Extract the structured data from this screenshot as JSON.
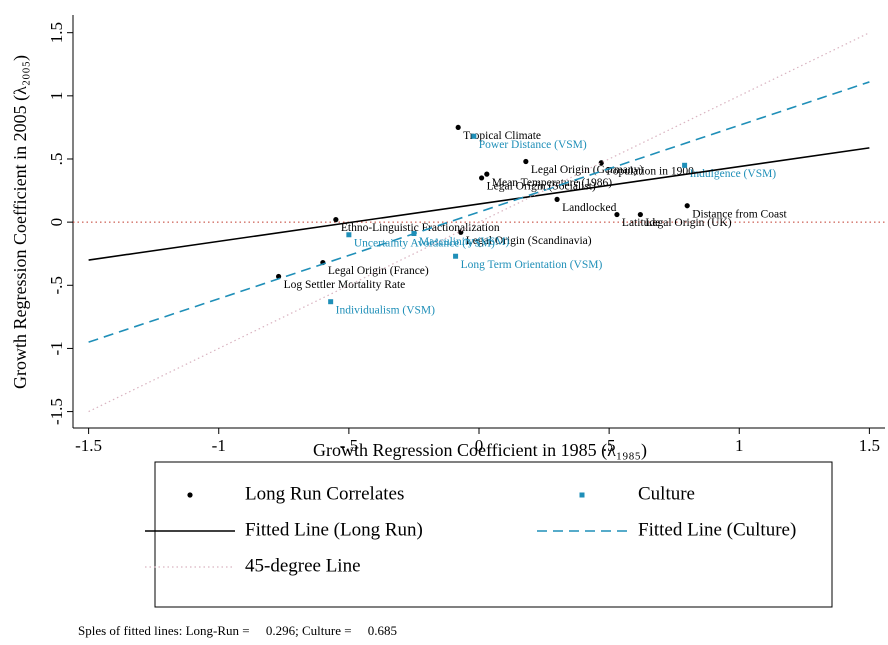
{
  "chart_data": {
    "type": "scatter",
    "xlabel": "Growth Regression Coefficient in 1985 (λ₁₉₈₅)",
    "ylabel": "Growth Regression Coefficient in 2005 (λ₂₀₀₅)",
    "xlim": [
      -1.56,
      1.56
    ],
    "ylim": [
      -1.63,
      1.64
    ],
    "xticks": [
      -1.5,
      -1,
      {
        "value": -0.5,
        "label": "-.5"
      },
      0,
      {
        "value": 0.5,
        "label": ".5"
      },
      1,
      1.5
    ],
    "yticks": [
      -1.5,
      -1,
      {
        "value": -0.5,
        "label": "-.5"
      },
      0,
      {
        "value": 0.5,
        "label": ".5"
      },
      1,
      1.5
    ],
    "hline": {
      "value": 0,
      "color": "#c0392b"
    },
    "series": [
      {
        "name": "Long Run Correlates",
        "style": "points",
        "marker": "dot",
        "color": "#000000",
        "x": [
          -0.08,
          0.18,
          0.47,
          0.03,
          0.01,
          0.3,
          0.53,
          0.62,
          0.8,
          -0.55,
          -0.6,
          -0.77,
          -0.07
        ],
        "values": [
          0.75,
          0.48,
          0.47,
          0.38,
          0.35,
          0.18,
          0.06,
          0.06,
          0.13,
          0.02,
          -0.32,
          -0.43,
          -0.08
        ],
        "labels": [
          "Tropical Climate",
          "Legal Origin (Germany)",
          "Population in 1900",
          "Mean Temperature (1986)",
          "Legal Origin (Socialist)",
          "Landlocked",
          "Latitude",
          "Legal Origin (UK)",
          "Distance from Coast",
          "Ethno-Linguistic Fractionalization",
          "Legal Origin (France)",
          "Log Settler Mortality Rate",
          "Legal Origin (Scandinavia)"
        ]
      },
      {
        "name": "Culture",
        "style": "points",
        "marker": "square",
        "color": "#1f8fb8",
        "x": [
          -0.02,
          0.79,
          -0.5,
          -0.25,
          -0.09,
          -0.57
        ],
        "values": [
          0.68,
          0.45,
          -0.1,
          -0.09,
          -0.27,
          -0.63
        ],
        "labels": [
          "Power Distance (VSM)",
          "Indulgence (VSM)",
          "Uncertainty Avoidance (VSM)",
          "Masculinity (VSM)",
          "Long Term Orientation (VSM)",
          "Individualism (VSM)"
        ]
      },
      {
        "name": "Fitted Line (Long Run)",
        "style": "line",
        "dash": "solid",
        "color": "#000000",
        "x": [
          -1.5,
          1.5
        ],
        "values": [
          -0.3,
          0.588
        ]
      },
      {
        "name": "Fitted Line (Culture)",
        "style": "line",
        "dash": "dashed",
        "color": "#1f8fb8",
        "x": [
          -1.5,
          1.5
        ],
        "values": [
          -0.95,
          1.11
        ]
      },
      {
        "name": "45-degree Line",
        "style": "line",
        "dash": "dotted",
        "color": "#d9b3c0",
        "x": [
          -1.5,
          1.5
        ],
        "values": [
          -1.5,
          1.5
        ]
      }
    ],
    "note": "Sples of fitted lines: Long-Run =     0.296; Culture =     0.685"
  }
}
